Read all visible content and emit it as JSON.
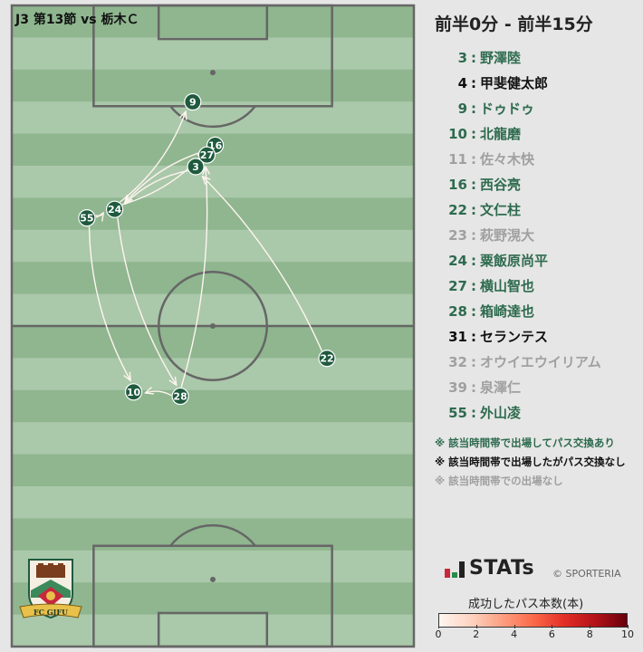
{
  "header": {
    "match_title": "J3 第13節 vs 栃木Ｃ"
  },
  "period": "前半0分 - 前半15分",
  "colors": {
    "pitch_light": "#aac8aa",
    "pitch_dark": "#8fb68f",
    "pitch_line": "#666666",
    "marker_fill": "#1f5a3e",
    "marker_text": "#ffffff",
    "pass_line": "#fff5f0",
    "status_pass": "#2e6b4e",
    "status_nopass": "#111111",
    "status_none": "#a0a0a0"
  },
  "roster": [
    {
      "number": "3",
      "name": "野澤陸",
      "status": "pass"
    },
    {
      "number": "4",
      "name": "甲斐健太郎",
      "status": "nopass"
    },
    {
      "number": "9",
      "name": "ドゥドゥ",
      "status": "pass"
    },
    {
      "number": "10",
      "name": "北龍磨",
      "status": "pass"
    },
    {
      "number": "11",
      "name": "佐々木快",
      "status": "none"
    },
    {
      "number": "16",
      "name": "西谷亮",
      "status": "pass"
    },
    {
      "number": "22",
      "name": "文仁柱",
      "status": "pass"
    },
    {
      "number": "23",
      "name": "萩野滉大",
      "status": "none"
    },
    {
      "number": "24",
      "name": "粟飯原尚平",
      "status": "pass"
    },
    {
      "number": "27",
      "name": "横山智也",
      "status": "pass"
    },
    {
      "number": "28",
      "name": "箱崎達也",
      "status": "pass"
    },
    {
      "number": "31",
      "name": "セランテス",
      "status": "nopass"
    },
    {
      "number": "32",
      "name": "オウイエウイリアム",
      "status": "none"
    },
    {
      "number": "39",
      "name": "泉澤仁",
      "status": "none"
    },
    {
      "number": "55",
      "name": "外山凌",
      "status": "pass"
    }
  ],
  "legend_notes": [
    {
      "text": "※ 該当時間帯で出場してパス交換あり",
      "status": "pass"
    },
    {
      "text": "※ 該当時間帯で出場したがパス交換なし",
      "status": "nopass"
    },
    {
      "text": "※ 該当時間帯での出場なし",
      "status": "none"
    }
  ],
  "branding": {
    "stats_logo": "STATs",
    "copyright": "© SPORTERIA",
    "club_emblem_text": "FC GIFU"
  },
  "colorbar": {
    "title": "成功したパス本数(本)",
    "min": 0,
    "max": 10,
    "ticks": [
      "0",
      "2",
      "4",
      "6",
      "8",
      "10"
    ]
  },
  "chart_data": {
    "type": "scatter",
    "title": "J3 第13節 vs 栃木Ｃ",
    "subtitle": "前半0分 - 前半15分",
    "description_axes": "pitch coordinates, x = width (0-68), y = length (0-105), own goal at bottom",
    "xlim": [
      0,
      68
    ],
    "ylim": [
      0,
      105
    ],
    "players": [
      {
        "number": "9",
        "x": 30.6,
        "y": 89.2
      },
      {
        "number": "16",
        "x": 34.4,
        "y": 82.1
      },
      {
        "number": "27",
        "x": 33.0,
        "y": 80.5
      },
      {
        "number": "3",
        "x": 31.1,
        "y": 78.6
      },
      {
        "number": "24",
        "x": 17.4,
        "y": 71.6
      },
      {
        "number": "55",
        "x": 12.7,
        "y": 70.2
      },
      {
        "number": "22",
        "x": 53.3,
        "y": 47.2
      },
      {
        "number": "10",
        "x": 20.6,
        "y": 41.7
      },
      {
        "number": "28",
        "x": 28.5,
        "y": 41.0
      }
    ],
    "passes": [
      {
        "from": "24",
        "to": "9",
        "count": 1
      },
      {
        "from": "16",
        "to": "24",
        "count": 1
      },
      {
        "from": "24",
        "to": "16",
        "count": 1
      },
      {
        "from": "3",
        "to": "24",
        "count": 1
      },
      {
        "from": "55",
        "to": "24",
        "count": 1
      },
      {
        "from": "55",
        "to": "10",
        "count": 1
      },
      {
        "from": "24",
        "to": "28",
        "count": 1
      },
      {
        "from": "28",
        "to": "10",
        "count": 1
      },
      {
        "from": "28",
        "to": "27",
        "count": 1
      },
      {
        "from": "22",
        "to": "3",
        "count": 1
      }
    ]
  }
}
